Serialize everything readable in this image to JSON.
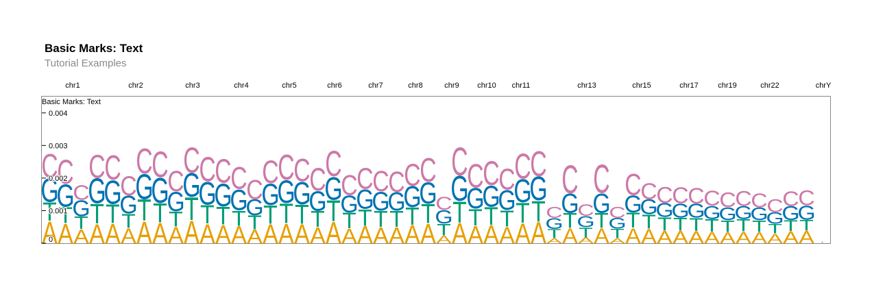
{
  "header": {
    "title": "Basic Marks: Text",
    "subtitle": "Tutorial Examples"
  },
  "chart_data": {
    "type": "text",
    "title": "Basic Marks: Text",
    "subtitle": "Tutorial Examples",
    "track_title": "Basic Marks: Text",
    "xlabel": "",
    "ylabel": "",
    "ylim": [
      0,
      0.0045
    ],
    "y_ticks": [
      {
        "value": 0,
        "label": "0"
      },
      {
        "value": 0.001,
        "label": "0.001"
      },
      {
        "value": 0.002,
        "label": "0.002"
      },
      {
        "value": 0.003,
        "label": "0.003"
      },
      {
        "value": 0.004,
        "label": "0.004"
      }
    ],
    "chromosome_labels": [
      "chr1",
      "chr2",
      "chr3",
      "chr4",
      "chr5",
      "chr6",
      "chr7",
      "chr8",
      "chr9",
      "chr10",
      "chr11",
      "chr13",
      "chr15",
      "chr17",
      "chr19",
      "chr22",
      "chrY"
    ],
    "bases": [
      "A",
      "T",
      "G",
      "C"
    ],
    "colors": {
      "A": "#e69f00",
      "T": "#009e73",
      "G": "#0072b2",
      "C": "#cc79a7"
    },
    "bins": [
      [
        0.00069,
        0.00058,
        0.00075,
        0.00074
      ],
      [
        0.00062,
        0.00051,
        0.0007,
        0.00076
      ],
      [
        0.00044,
        0.00039,
        0.00051,
        0.00046
      ],
      [
        0.00061,
        0.00062,
        0.00078,
        0.00073
      ],
      [
        0.00062,
        0.00059,
        0.00075,
        0.00077
      ],
      [
        0.00047,
        0.00044,
        0.00056,
        0.00061
      ],
      [
        0.00069,
        0.00067,
        0.00078,
        0.00078
      ],
      [
        0.00064,
        0.0006,
        0.00079,
        0.00081
      ],
      [
        0.00052,
        0.00047,
        0.00061,
        0.00065
      ],
      [
        0.00071,
        0.00072,
        0.00074,
        0.0008
      ],
      [
        0.00061,
        0.00058,
        0.00071,
        0.00077
      ],
      [
        0.00058,
        0.00056,
        0.00072,
        0.00074
      ],
      [
        0.00054,
        0.00048,
        0.00065,
        0.00069
      ],
      [
        0.00043,
        0.00043,
        0.0005,
        0.00061
      ],
      [
        0.0006,
        0.00058,
        0.00067,
        0.00071
      ],
      [
        0.00062,
        0.00062,
        0.00072,
        0.00078
      ],
      [
        0.0006,
        0.0006,
        0.0007,
        0.00072
      ],
      [
        0.0005,
        0.0005,
        0.00062,
        0.00071
      ],
      [
        0.00068,
        0.00066,
        0.00072,
        0.0008
      ],
      [
        0.00046,
        0.00049,
        0.00053,
        0.00063
      ],
      [
        0.00054,
        0.00052,
        0.00061,
        0.00066
      ],
      [
        0.00051,
        0.0005,
        0.00059,
        0.00064
      ],
      [
        0.0005,
        0.00051,
        0.00057,
        0.00064
      ],
      [
        0.00057,
        0.00054,
        0.00066,
        0.00069
      ],
      [
        0.00062,
        0.0006,
        0.00067,
        0.00074
      ],
      [
        0.00024,
        0.00037,
        0.00042,
        0.0004
      ],
      [
        0.00064,
        0.00066,
        0.00078,
        0.00088
      ],
      [
        0.00055,
        0.00052,
        0.00064,
        0.00075
      ],
      [
        0.00057,
        0.00056,
        0.00066,
        0.00076
      ],
      [
        0.00052,
        0.00051,
        0.00062,
        0.00066
      ],
      [
        0.00063,
        0.00063,
        0.00073,
        0.00079
      ],
      [
        0.00067,
        0.00065,
        0.00074,
        0.00079
      ],
      [
        0.00016,
        0.00028,
        0.00034,
        0.00035
      ],
      [
        0.00047,
        0.00047,
        0.0006,
        0.00088
      ],
      [
        0.00018,
        0.00031,
        0.00035,
        0.00036
      ],
      [
        0.00047,
        0.00047,
        0.00061,
        0.0009
      ],
      [
        0.00016,
        0.00029,
        0.00033,
        0.00035
      ],
      [
        0.00048,
        0.00047,
        0.00053,
        0.00068
      ],
      [
        0.00045,
        0.00044,
        0.00047,
        0.00051
      ],
      [
        0.00039,
        0.00042,
        0.00043,
        0.0005
      ],
      [
        0.00039,
        0.0004,
        0.00044,
        0.00051
      ],
      [
        0.00038,
        0.00041,
        0.00043,
        0.00049
      ],
      [
        0.00036,
        0.00039,
        0.00041,
        0.00047
      ],
      [
        0.00035,
        0.00037,
        0.00039,
        0.00046
      ],
      [
        0.00037,
        0.00038,
        0.0004,
        0.00047
      ],
      [
        0.00035,
        0.00036,
        0.00039,
        0.00044
      ],
      [
        0.0003,
        0.0003,
        0.00036,
        0.0004
      ],
      [
        0.00038,
        0.00034,
        0.00043,
        0.00046
      ],
      [
        0.00039,
        0.00034,
        0.00044,
        0.00048
      ],
      [
        2e-05,
        3e-05,
        1e-05,
        1e-05
      ]
    ]
  }
}
